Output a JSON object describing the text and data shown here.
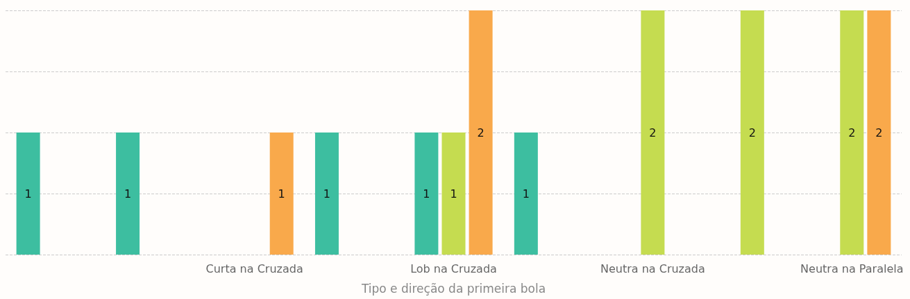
{
  "chart_data": {
    "type": "bar",
    "xlabel": "Tipo e direção da primeira bola",
    "categories": [
      null,
      null,
      "Curta na Cruzada",
      null,
      "Lob na Cruzada",
      null,
      "Neutra na Cruzada",
      null,
      "Neutra na Paralela"
    ],
    "series": [
      {
        "color": "#3dbea0",
        "values": [
          1,
          1,
          null,
          1,
          1,
          1,
          null,
          null,
          null
        ]
      },
      {
        "color": "#c5dc50",
        "values": [
          null,
          null,
          null,
          null,
          1,
          null,
          2,
          2,
          2
        ]
      },
      {
        "color": "#f9a94b",
        "values": [
          null,
          null,
          1,
          null,
          2,
          null,
          null,
          null,
          2
        ]
      }
    ],
    "ylim": [
      0,
      2
    ],
    "yticks": [
      {
        "value": 0,
        "label": null
      },
      {
        "value": 0.5,
        "label": null
      },
      {
        "value": 1,
        "label": null
      },
      {
        "value": 1.5,
        "label": null
      },
      {
        "value": 2,
        "label": null
      }
    ],
    "tick_labels": "x",
    "grid": "y",
    "data_labels": true
  }
}
